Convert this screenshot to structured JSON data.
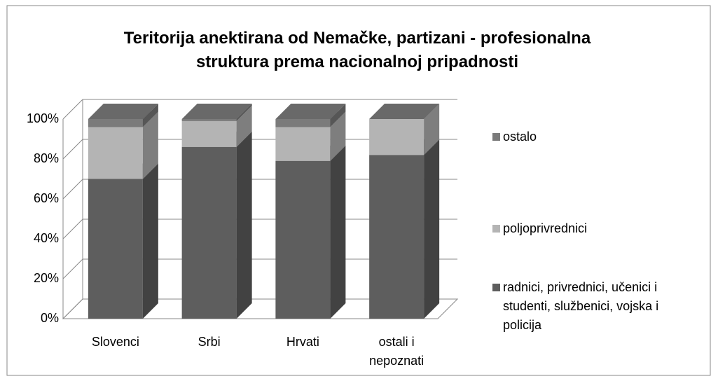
{
  "chart_data": {
    "type": "bar",
    "stacked": true,
    "three_d": true,
    "title": "Teritorija anektirana od Nemačke, partizani - profesionalna struktura prema nacionalnoj pripadnosti",
    "categories": [
      "Slovenci",
      "Srbi",
      "Hrvati",
      "ostali i nepoznati"
    ],
    "series": [
      {
        "name": "radnici, privrednici, učenici i studenti, službenici, vojska i policija",
        "color": "#5e5e5e",
        "values": [
          70,
          86,
          79,
          82
        ]
      },
      {
        "name": "poljoprivrednici",
        "color": "#b4b4b4",
        "values": [
          26,
          13,
          17,
          18
        ]
      },
      {
        "name": "ostalo",
        "color": "#7b7b7b",
        "values": [
          4,
          1,
          4,
          0
        ]
      }
    ],
    "ylim": [
      0,
      100
    ],
    "yticks": [
      {
        "value": 0,
        "label": "0%"
      },
      {
        "value": 20,
        "label": "20%"
      },
      {
        "value": 40,
        "label": "40%"
      },
      {
        "value": 60,
        "label": "60%"
      },
      {
        "value": 80,
        "label": "80%"
      },
      {
        "value": 100,
        "label": "100%"
      }
    ],
    "grid": true,
    "legend": "right"
  }
}
